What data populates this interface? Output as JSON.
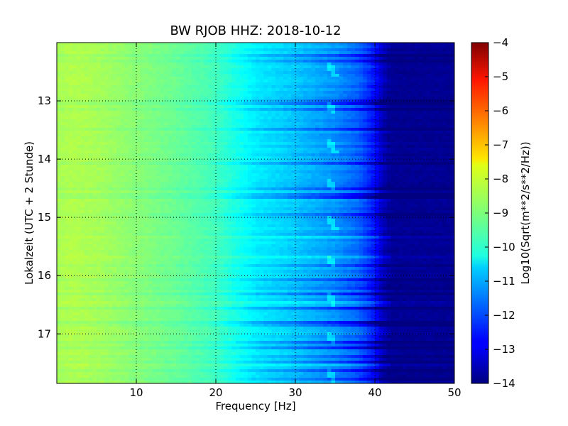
{
  "chart_data": {
    "type": "heatmap",
    "title": "BW RJOB HHZ: 2018-10-12",
    "xlabel": "Frequency [Hz]",
    "ylabel": "Lokalzeit (UTC + 2 Stunde)",
    "xlim": [
      0,
      50
    ],
    "ylim": [
      12.0,
      17.85
    ],
    "x_ticks": [
      10,
      20,
      30,
      40,
      50
    ],
    "x_tick_labels": [
      "10",
      "20",
      "30",
      "40",
      "50"
    ],
    "y_ticks": [
      13,
      14,
      15,
      16,
      17
    ],
    "y_tick_labels": [
      "13",
      "14",
      "15",
      "16",
      "17"
    ],
    "y_inverted": true,
    "grid": true,
    "colormap": "jet",
    "colorbar": {
      "label": "Log10(Sqrt(m**2/s**2/Hz))",
      "range": [
        -14,
        -4
      ],
      "ticks": [
        -4,
        -5,
        -6,
        -7,
        -8,
        -9,
        -10,
        -11,
        -12,
        -13,
        -14
      ],
      "tick_labels": [
        "−4",
        "−5",
        "−6",
        "−7",
        "−8",
        "−9",
        "−10",
        "−11",
        "−12",
        "−13",
        "−14"
      ]
    },
    "frequency_profile": {
      "frequency_hz": [
        0,
        2,
        5,
        10,
        15,
        20,
        25,
        30,
        35,
        38,
        40,
        41,
        42,
        50
      ],
      "log10_amplitude": [
        -8.6,
        -8.5,
        -8.6,
        -8.9,
        -9.2,
        -9.6,
        -10.4,
        -10.8,
        -11.3,
        -11.8,
        -12.6,
        -13.4,
        -13.8,
        -13.8
      ]
    }
  }
}
